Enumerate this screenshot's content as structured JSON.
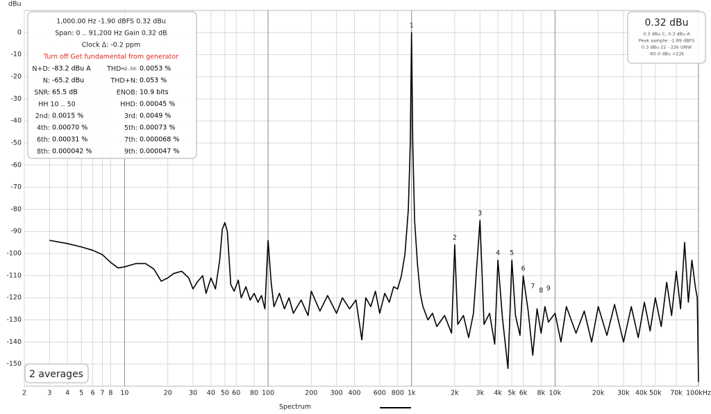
{
  "chart_data": {
    "type": "line",
    "y_label": "dBu",
    "xlim": [
      2,
      100000
    ],
    "ylim": [
      -160,
      10
    ],
    "log_x": true,
    "grid": true,
    "xticks": [
      2,
      3,
      4,
      5,
      6,
      7,
      8,
      10,
      20,
      30,
      40,
      50,
      60,
      80,
      100,
      200,
      300,
      400,
      600,
      800,
      {
        "value": 1000,
        "label": "1k"
      },
      {
        "value": 2000,
        "label": "2k"
      },
      {
        "value": 3000,
        "label": "3k"
      },
      {
        "value": 4000,
        "label": "4k"
      },
      {
        "value": 5000,
        "label": "5k"
      },
      {
        "value": 6000,
        "label": "6k"
      },
      {
        "value": 8000,
        "label": "8k"
      },
      {
        "value": 10000,
        "label": "10k"
      },
      {
        "value": 20000,
        "label": "20k"
      },
      {
        "value": 30000,
        "label": "30k"
      },
      {
        "value": 40000,
        "label": "40k"
      },
      {
        "value": 50000,
        "label": "50k"
      },
      {
        "value": 70000,
        "label": "70k"
      },
      {
        "value": 100000,
        "label": "100kHz"
      }
    ],
    "yticks": [
      0,
      -10,
      -20,
      -30,
      -40,
      -50,
      -60,
      -70,
      -80,
      -90,
      -100,
      -110,
      -120,
      -130,
      -140,
      -150
    ],
    "x": [
      3,
      4,
      5,
      6,
      7,
      8,
      9,
      10,
      12,
      14,
      16,
      18,
      20,
      22,
      25,
      28,
      30,
      32,
      35,
      37,
      40,
      43,
      46,
      48,
      50,
      52,
      55,
      58,
      62,
      65,
      70,
      75,
      80,
      85,
      90,
      95,
      100,
      105,
      110,
      120,
      130,
      140,
      150,
      170,
      190,
      200,
      230,
      260,
      300,
      330,
      370,
      410,
      450,
      480,
      520,
      560,
      600,
      650,
      700,
      750,
      800,
      850,
      900,
      950,
      980,
      1000,
      1020,
      1050,
      1100,
      1150,
      1200,
      1300,
      1400,
      1500,
      1700,
      1900,
      2000,
      2100,
      2300,
      2500,
      2700,
      3000,
      3200,
      3500,
      3800,
      4000,
      4300,
      4700,
      5000,
      5300,
      5700,
      6000,
      6500,
      7000,
      7500,
      8000,
      8500,
      9000,
      10000,
      11000,
      12000,
      14000,
      16000,
      18000,
      20000,
      23000,
      26000,
      30000,
      34000,
      38000,
      42000,
      46000,
      50000,
      55000,
      60000,
      65000,
      70000,
      75000,
      80000,
      85000,
      90000,
      95000,
      98000,
      100000
    ],
    "series": [
      {
        "name": "Spectrum",
        "color": "#000000",
        "values": [
          -94,
          -95.5,
          -97,
          -98.5,
          -100.5,
          -104,
          -106.5,
          -106,
          -104.5,
          -104.5,
          -107,
          -112.5,
          -111,
          -109,
          -108,
          -111,
          -116,
          -113,
          -110,
          -118,
          -111,
          -116,
          -103,
          -89,
          -86,
          -90,
          -114,
          -117,
          -112,
          -120,
          -115,
          -121,
          -118,
          -122,
          -119,
          -125,
          -94,
          -113,
          -124,
          -118,
          -125,
          -120,
          -127,
          -121,
          -128,
          -117,
          -126,
          -119,
          -127,
          -120,
          -125,
          -121,
          -139,
          -120,
          -124,
          -117,
          -127,
          -118,
          -122,
          -115,
          -116,
          -110,
          -100,
          -80,
          -50,
          0,
          -50,
          -85,
          -105,
          -118,
          -124,
          -130,
          -127,
          -133,
          -128,
          -136,
          -96,
          -132,
          -128,
          -138,
          -127,
          -85,
          -132,
          -127,
          -141,
          -103,
          -129,
          -152,
          -103,
          -128,
          -137,
          -110,
          -126,
          -146,
          -125,
          -136,
          -124,
          -131,
          -127,
          -140,
          -124,
          -136,
          -126,
          -140,
          -124,
          -137,
          -123,
          -140,
          -124,
          -138,
          -122,
          -135,
          -120,
          -133,
          -113,
          -128,
          -108,
          -125,
          -95,
          -122,
          -103,
          -115,
          -120,
          -158
        ]
      }
    ],
    "harmonic_markers": [
      {
        "label": "1",
        "x": 1000,
        "y": 0
      },
      {
        "label": "2",
        "x": 2000,
        "y": -96
      },
      {
        "label": "3",
        "x": 3000,
        "y": -85
      },
      {
        "label": "4",
        "x": 4000,
        "y": -103
      },
      {
        "label": "5",
        "x": 5000,
        "y": -103
      },
      {
        "label": "6",
        "x": 6000,
        "y": -110
      },
      {
        "label": "7",
        "x": 7000,
        "y": -118
      },
      {
        "label": "8",
        "x": 8000,
        "y": -120
      },
      {
        "label": "9",
        "x": 9000,
        "y": -119
      }
    ]
  },
  "info_panel": {
    "lines": [
      "1,000.00 Hz  -1.90 dBFS  0.32 dBu",
      "Span: 0 .. 91,200 Hz  Gain 0.32 dB",
      "Clock Δ: -0.2 ppm"
    ],
    "warning": "Turn off Get fundamental from generator",
    "rows": [
      [
        {
          "label": "N+D:",
          "value": "-83.2 dBu A"
        },
        {
          "label": "THD",
          "sub": "H2..50:",
          "value": "0.0053 %"
        }
      ],
      [
        {
          "label": "N:",
          "value": "-65.2 dBu"
        },
        {
          "label": "THD+N:",
          "value": "0.053 %"
        }
      ],
      [
        {
          "label": "SNR:",
          "value": "65.5 dB"
        },
        {
          "label": "ENOB:",
          "value": "10.9 bits"
        }
      ],
      [
        {
          "label": "HH 10 .. 50"
        },
        {
          "label": "HHD:",
          "value": "0.00045 %"
        }
      ],
      [
        {
          "label": "2nd:",
          "value": "0.0015 %"
        },
        {
          "label": "3rd:",
          "value": "0.0049 %"
        }
      ],
      [
        {
          "label": "4th:",
          "value": "0.00070 %"
        },
        {
          "label": "5th:",
          "value": "0.00073 %"
        }
      ],
      [
        {
          "label": "6th:",
          "value": "0.00031 %"
        },
        {
          "label": "7th:",
          "value": "0.000068 %"
        }
      ],
      [
        {
          "label": "8th:",
          "value": "0.000042 %"
        },
        {
          "label": "9th:",
          "value": "0.000047 %"
        }
      ]
    ]
  },
  "level_panel": {
    "level": "0.32 dBu",
    "details": [
      "0.3 dBu C, 0.3 dBu A",
      "Peak sample: -1.89 dBFS",
      "0.3 dBu 22 - 22k UNW",
      "-65.0 dBu >22k"
    ]
  },
  "averages": "2 averages"
}
